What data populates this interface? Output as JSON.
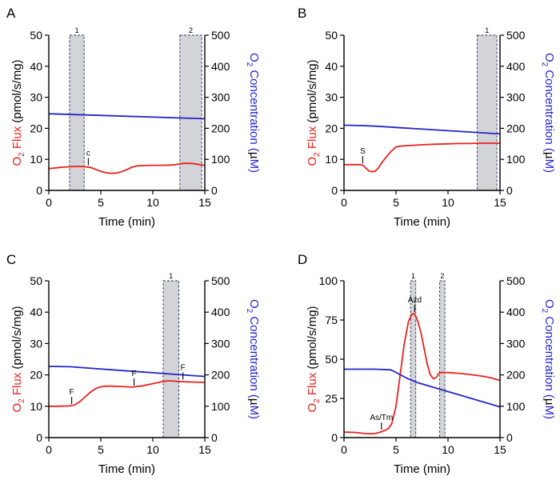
{
  "chart_data": [
    {
      "panel": "A",
      "type": "line",
      "xlabel": "Time (min)",
      "ylabel_left": {
        "prefix": "O",
        "sub": "2",
        "suffix": " Flux",
        "units": " (pmol/s/mg)"
      },
      "ylabel_right": {
        "prefix": "O",
        "sub": "2",
        "suffix": " Concentration (",
        "mu": "µ",
        "units": "M)"
      },
      "xlim": [
        0,
        15
      ],
      "xticks": [
        0,
        5,
        10,
        15
      ],
      "ylim_left": [
        0,
        50
      ],
      "yticks_left": [
        0,
        10,
        20,
        30,
        40,
        50
      ],
      "ylim_right": [
        0,
        500
      ],
      "yticks_right": [
        0,
        100,
        200,
        300,
        400,
        500
      ],
      "shaded_regions": [
        {
          "label": "1",
          "x": [
            2.0,
            3.4
          ]
        },
        {
          "label": "2",
          "x": [
            12.6,
            14.7
          ]
        }
      ],
      "annotations": [
        {
          "label": "c",
          "x": 3.8,
          "y": 7.6
        }
      ],
      "series": [
        {
          "name": "O2 Flux",
          "axis": "left",
          "color": "#e8231d",
          "x": [
            0,
            0.5,
            1.0,
            1.5,
            2.0,
            2.5,
            3.0,
            3.5,
            4.0,
            4.5,
            5.0,
            5.5,
            6.0,
            6.5,
            7.0,
            7.5,
            8.0,
            8.5,
            9.0,
            10.0,
            11.0,
            12.0,
            12.5,
            13.0,
            13.5,
            14.0,
            14.5,
            15.0
          ],
          "y": [
            7.0,
            7.2,
            7.4,
            7.5,
            7.6,
            7.7,
            7.7,
            7.6,
            7.4,
            6.8,
            6.1,
            5.7,
            5.5,
            5.6,
            6.0,
            6.7,
            7.5,
            7.9,
            8.0,
            8.1,
            8.1,
            8.2,
            8.5,
            8.7,
            8.7,
            8.6,
            8.3,
            8.1
          ]
        },
        {
          "name": "O2 Concentration",
          "axis": "right",
          "color": "#2424c9",
          "x": [
            0,
            15
          ],
          "y": [
            247,
            231
          ]
        }
      ]
    },
    {
      "panel": "B",
      "type": "line",
      "xlabel": "Time (min)",
      "ylabel_left": {
        "prefix": "O",
        "sub": "2",
        "suffix": " Flux",
        "units": " (pmol/s/mg)"
      },
      "ylabel_right": {
        "prefix": "O",
        "sub": "2",
        "suffix": " Concentration (",
        "mu": "µ",
        "units": "M)"
      },
      "xlim": [
        0,
        15
      ],
      "xticks": [
        0,
        5,
        10,
        15
      ],
      "ylim_left": [
        0,
        50
      ],
      "yticks_left": [
        0,
        10,
        20,
        30,
        40,
        50
      ],
      "ylim_right": [
        0,
        500
      ],
      "yticks_right": [
        0,
        100,
        200,
        300,
        400,
        500
      ],
      "shaded_regions": [
        {
          "label": "1",
          "x": [
            12.8,
            14.7
          ]
        }
      ],
      "annotations": [
        {
          "label": "S",
          "x": 1.8,
          "y": 8.2
        }
      ],
      "series": [
        {
          "name": "O2 Flux",
          "axis": "left",
          "color": "#e8231d",
          "x": [
            0,
            0.5,
            1.0,
            1.5,
            1.8,
            2.1,
            2.4,
            2.7,
            3.0,
            3.3,
            3.6,
            4.0,
            4.5,
            5.0,
            5.5,
            6.0,
            7.0,
            8.0,
            9.0,
            10.0,
            11.0,
            12.0,
            13.0,
            14.0,
            15.0
          ],
          "y": [
            8.3,
            8.3,
            8.3,
            8.3,
            8.2,
            7.2,
            6.3,
            6.0,
            6.2,
            7.2,
            8.8,
            10.5,
            12.5,
            14.0,
            14.3,
            14.4,
            14.6,
            14.8,
            14.9,
            15.0,
            15.1,
            15.1,
            15.2,
            15.2,
            15.2
          ]
        },
        {
          "name": "O2 Concentration",
          "axis": "right",
          "color": "#2424c9",
          "x": [
            0,
            1.5,
            3.0,
            15
          ],
          "y": [
            210,
            209,
            207,
            182
          ]
        }
      ]
    },
    {
      "panel": "C",
      "type": "line",
      "xlabel": "Time (min)",
      "ylabel_left": {
        "prefix": "O",
        "sub": "2",
        "suffix": " Flux",
        "units": " (pmol/s/mg)"
      },
      "ylabel_right": {
        "prefix": "O",
        "sub": "2",
        "suffix": " Concentration (",
        "mu": "µ",
        "units": "M)"
      },
      "xlim": [
        0,
        15
      ],
      "xticks": [
        0,
        5,
        10,
        15
      ],
      "ylim_left": [
        0,
        50
      ],
      "yticks_left": [
        0,
        10,
        20,
        30,
        40,
        50
      ],
      "ylim_right": [
        0,
        500
      ],
      "yticks_right": [
        0,
        100,
        200,
        300,
        400,
        500
      ],
      "shaded_regions": [
        {
          "label": "1",
          "x": [
            11.0,
            12.5
          ]
        }
      ],
      "annotations": [
        {
          "label": "F",
          "x": 2.2,
          "y": 10.2
        },
        {
          "label": "F",
          "x": 8.2,
          "y": 16.1
        },
        {
          "label": "F",
          "x": 12.9,
          "y": 18.0
        }
      ],
      "series": [
        {
          "name": "O2 Flux",
          "axis": "left",
          "color": "#e8231d",
          "x": [
            0,
            1.0,
            2.0,
            2.5,
            3.0,
            3.5,
            4.0,
            4.5,
            5.0,
            5.5,
            6.0,
            7.0,
            8.0,
            9.0,
            10.0,
            11.0,
            11.5,
            12.0,
            13.0,
            14.0,
            15.0
          ],
          "y": [
            10.0,
            10.0,
            10.1,
            10.4,
            11.5,
            13.0,
            14.5,
            15.6,
            16.2,
            16.4,
            16.4,
            16.3,
            16.1,
            16.5,
            17.2,
            17.9,
            18.1,
            18.0,
            17.8,
            17.7,
            17.6
          ]
        },
        {
          "name": "O2 Concentration",
          "axis": "right",
          "color": "#2424c9",
          "x": [
            0,
            2.0,
            15
          ],
          "y": [
            227,
            226,
            195
          ]
        }
      ]
    },
    {
      "panel": "D",
      "type": "line",
      "xlabel": "Time (min)",
      "ylabel_left": {
        "prefix": "O",
        "sub": "2",
        "suffix": " Flux",
        "units": " (pmol/s/mg)"
      },
      "ylabel_right": {
        "prefix": "O",
        "sub": "2",
        "suffix": " Concentration (",
        "mu": "µ",
        "units": "M)"
      },
      "xlim": [
        0,
        15
      ],
      "xticks": [
        0,
        5,
        10,
        15
      ],
      "ylim_left": [
        0,
        100
      ],
      "yticks_left": [
        0,
        25,
        50,
        75,
        100
      ],
      "ylim_right": [
        0,
        500
      ],
      "yticks_right": [
        0,
        100,
        200,
        300,
        400,
        500
      ],
      "shaded_regions": [
        {
          "label": "1",
          "x": [
            6.4,
            6.9
          ]
        },
        {
          "label": "2",
          "x": [
            9.2,
            9.7
          ]
        }
      ],
      "annotations": [
        {
          "label": "As/Tm",
          "x": 3.6,
          "y": 4.0
        },
        {
          "label": "Azd",
          "x": 6.8,
          "y": 79
        }
      ],
      "series": [
        {
          "name": "O2 Flux",
          "axis": "left",
          "color": "#e8231d",
          "x": [
            0,
            0.5,
            1.0,
            1.5,
            2.0,
            2.5,
            3.0,
            3.5,
            4.0,
            4.3,
            4.6,
            5.0,
            5.4,
            5.8,
            6.2,
            6.5,
            6.7,
            6.9,
            7.1,
            7.4,
            7.7,
            8.0,
            8.3,
            8.6,
            8.9,
            9.1,
            9.3,
            9.5,
            10.0,
            11.0,
            12.0,
            13.0,
            14.0,
            15.0
          ],
          "y": [
            3.5,
            3.4,
            3.3,
            3.0,
            2.6,
            2.4,
            2.6,
            3.5,
            4.8,
            6.0,
            9.0,
            20,
            40,
            60,
            74,
            78.5,
            79.0,
            77.5,
            74,
            67,
            57,
            47,
            40,
            37.5,
            38.5,
            41,
            41.5,
            41.5,
            41.5,
            41.0,
            40.3,
            39.5,
            38.3,
            36.5
          ]
        },
        {
          "name": "O2 Concentration",
          "axis": "right",
          "color": "#2424c9",
          "x": [
            0,
            3.0,
            4.5,
            5.0,
            6.0,
            7.0,
            15
          ],
          "y": [
            218,
            218,
            216,
            208,
            190,
            176,
            98
          ]
        }
      ]
    }
  ]
}
